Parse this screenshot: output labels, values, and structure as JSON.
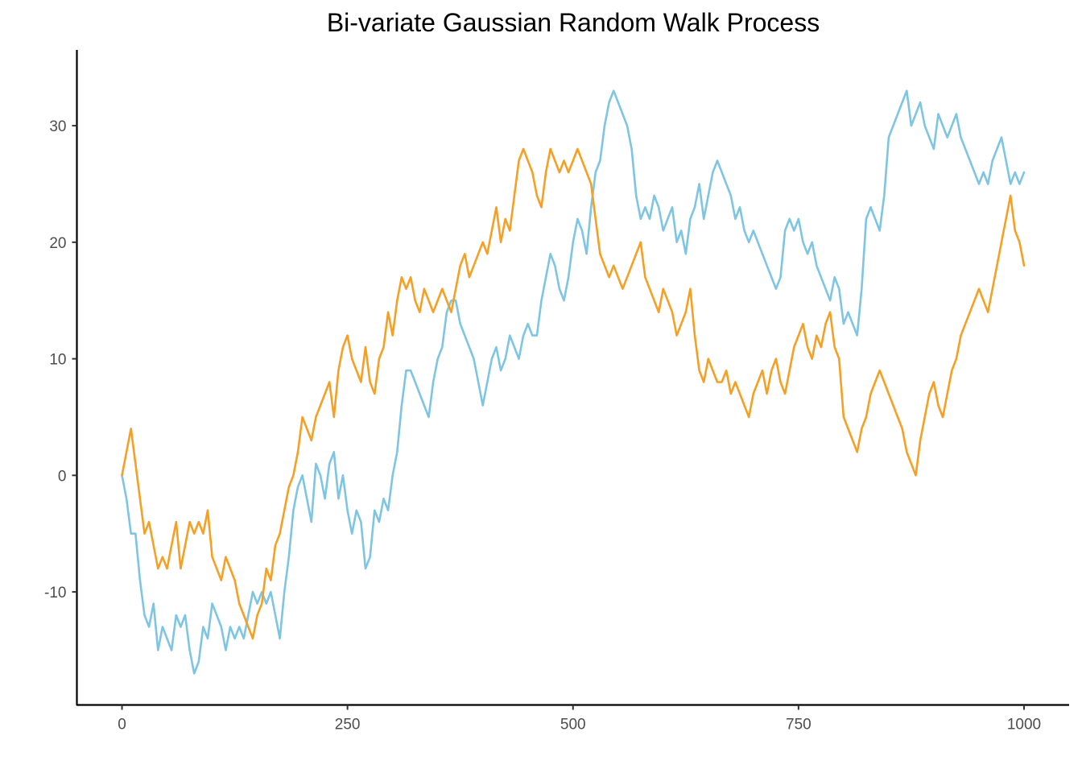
{
  "chart_data": {
    "type": "line",
    "title": "Bi-variate Gaussian Random Walk Process",
    "xlabel": "",
    "ylabel": "",
    "xlim": [
      -50,
      1050
    ],
    "ylim": [
      -19.7,
      36.5
    ],
    "grid": false,
    "x_ticks": [
      0,
      250,
      500,
      750,
      1000
    ],
    "y_ticks": [
      -10,
      0,
      10,
      20,
      30
    ],
    "x_tick_labels": [
      "0",
      "250",
      "500",
      "750",
      "1000"
    ],
    "y_tick_labels": [
      "-10",
      "0",
      "10",
      "20",
      "30"
    ],
    "series": [
      {
        "color": "#7ec5e3",
        "x": [
          0,
          5,
          10,
          15,
          20,
          25,
          30,
          35,
          40,
          45,
          50,
          55,
          60,
          65,
          70,
          75,
          80,
          85,
          90,
          95,
          100,
          105,
          110,
          115,
          120,
          125,
          130,
          135,
          140,
          145,
          150,
          155,
          160,
          165,
          170,
          175,
          180,
          185,
          190,
          195,
          200,
          205,
          210,
          215,
          220,
          225,
          230,
          235,
          240,
          245,
          250,
          255,
          260,
          265,
          270,
          275,
          280,
          285,
          290,
          295,
          300,
          305,
          310,
          315,
          320,
          325,
          330,
          335,
          340,
          345,
          350,
          355,
          360,
          365,
          370,
          375,
          380,
          385,
          390,
          395,
          400,
          405,
          410,
          415,
          420,
          425,
          430,
          435,
          440,
          445,
          450,
          455,
          460,
          465,
          470,
          475,
          480,
          485,
          490,
          495,
          500,
          505,
          510,
          515,
          520,
          525,
          530,
          535,
          540,
          545,
          550,
          555,
          560,
          565,
          570,
          575,
          580,
          585,
          590,
          595,
          600,
          605,
          610,
          615,
          620,
          625,
          630,
          635,
          640,
          645,
          650,
          655,
          660,
          665,
          670,
          675,
          680,
          685,
          690,
          695,
          700,
          705,
          710,
          715,
          720,
          725,
          730,
          735,
          740,
          745,
          750,
          755,
          760,
          765,
          770,
          775,
          780,
          785,
          790,
          795,
          800,
          805,
          810,
          815,
          820,
          825,
          830,
          835,
          840,
          845,
          850,
          855,
          860,
          865,
          870,
          875,
          880,
          885,
          890,
          895,
          900,
          905,
          910,
          915,
          920,
          925,
          930,
          935,
          940,
          945,
          950,
          955,
          960,
          965,
          970,
          975,
          980,
          985,
          990,
          995,
          1000
        ],
        "y": [
          0,
          -2,
          -5,
          -5,
          -9,
          -12,
          -13,
          -11,
          -15,
          -13,
          -14,
          -15,
          -12,
          -13,
          -12,
          -15,
          -17,
          -16,
          -13,
          -14,
          -11,
          -12,
          -13,
          -15,
          -13,
          -14,
          -13,
          -14,
          -12,
          -10,
          -11,
          -10,
          -11,
          -10,
          -12,
          -14,
          -10,
          -7,
          -3,
          -1,
          0,
          -2,
          -4,
          1,
          0,
          -2,
          1,
          2,
          -2,
          0,
          -3,
          -5,
          -3,
          -4,
          -8,
          -7,
          -3,
          -4,
          -2,
          -3,
          0,
          2,
          6,
          9,
          9,
          8,
          7,
          6,
          5,
          8,
          10,
          11,
          14,
          15,
          15,
          13,
          12,
          11,
          10,
          8,
          6,
          8,
          10,
          11,
          9,
          10,
          12,
          11,
          10,
          12,
          13,
          12,
          12,
          15,
          17,
          19,
          18,
          16,
          15,
          17,
          20,
          22,
          21,
          19,
          23,
          26,
          27,
          30,
          32,
          33,
          32,
          31,
          30,
          28,
          24,
          22,
          23,
          22,
          24,
          23,
          21,
          22,
          23,
          20,
          21,
          19,
          22,
          23,
          25,
          22,
          24,
          26,
          27,
          26,
          25,
          24,
          22,
          23,
          21,
          20,
          21,
          20,
          19,
          18,
          17,
          16,
          17,
          21,
          22,
          21,
          22,
          20,
          19,
          20,
          18,
          17,
          16,
          15,
          17,
          16,
          13,
          14,
          13,
          12,
          16,
          22,
          23,
          22,
          21,
          24,
          29,
          30,
          31,
          32,
          33,
          30,
          31,
          32,
          30,
          29,
          28,
          31,
          30,
          29,
          30,
          31,
          29,
          28,
          27,
          26,
          25,
          26,
          25,
          27,
          28,
          29,
          27,
          25,
          26,
          25,
          26
        ]
      },
      {
        "color": "#f5a024",
        "x": [
          0,
          5,
          10,
          15,
          20,
          25,
          30,
          35,
          40,
          45,
          50,
          55,
          60,
          65,
          70,
          75,
          80,
          85,
          90,
          95,
          100,
          105,
          110,
          115,
          120,
          125,
          130,
          135,
          140,
          145,
          150,
          155,
          160,
          165,
          170,
          175,
          180,
          185,
          190,
          195,
          200,
          205,
          210,
          215,
          220,
          225,
          230,
          235,
          240,
          245,
          250,
          255,
          260,
          265,
          270,
          275,
          280,
          285,
          290,
          295,
          300,
          305,
          310,
          315,
          320,
          325,
          330,
          335,
          340,
          345,
          350,
          355,
          360,
          365,
          370,
          375,
          380,
          385,
          390,
          395,
          400,
          405,
          410,
          415,
          420,
          425,
          430,
          435,
          440,
          445,
          450,
          455,
          460,
          465,
          470,
          475,
          480,
          485,
          490,
          495,
          500,
          505,
          510,
          515,
          520,
          525,
          530,
          535,
          540,
          545,
          550,
          555,
          560,
          565,
          570,
          575,
          580,
          585,
          590,
          595,
          600,
          605,
          610,
          615,
          620,
          625,
          630,
          635,
          640,
          645,
          650,
          655,
          660,
          665,
          670,
          675,
          680,
          685,
          690,
          695,
          700,
          705,
          710,
          715,
          720,
          725,
          730,
          735,
          740,
          745,
          750,
          755,
          760,
          765,
          770,
          775,
          780,
          785,
          790,
          795,
          800,
          805,
          810,
          815,
          820,
          825,
          830,
          835,
          840,
          845,
          850,
          855,
          860,
          865,
          870,
          875,
          880,
          885,
          890,
          895,
          900,
          905,
          910,
          915,
          920,
          925,
          930,
          935,
          940,
          945,
          950,
          955,
          960,
          965,
          970,
          975,
          980,
          985,
          990,
          995,
          1000
        ],
        "y": [
          0,
          2,
          4,
          1,
          -2,
          -5,
          -4,
          -6,
          -8,
          -7,
          -8,
          -6,
          -4,
          -8,
          -6,
          -4,
          -5,
          -4,
          -5,
          -3,
          -7,
          -8,
          -9,
          -7,
          -8,
          -9,
          -11,
          -12,
          -13,
          -14,
          -12,
          -11,
          -8,
          -9,
          -6,
          -5,
          -3,
          -1,
          0,
          2,
          5,
          4,
          3,
          5,
          6,
          7,
          8,
          5,
          9,
          11,
          12,
          10,
          9,
          8,
          11,
          8,
          7,
          10,
          11,
          14,
          12,
          15,
          17,
          16,
          17,
          15,
          14,
          16,
          15,
          14,
          15,
          16,
          15,
          14,
          16,
          18,
          19,
          17,
          18,
          19,
          20,
          19,
          21,
          23,
          20,
          22,
          21,
          24,
          27,
          28,
          27,
          26,
          24,
          23,
          26,
          28,
          27,
          26,
          27,
          26,
          27,
          28,
          27,
          26,
          25,
          22,
          19,
          18,
          17,
          18,
          17,
          16,
          17,
          18,
          19,
          20,
          17,
          16,
          15,
          14,
          16,
          15,
          14,
          12,
          13,
          14,
          16,
          12,
          9,
          8,
          10,
          9,
          8,
          8,
          9,
          7,
          8,
          7,
          6,
          5,
          7,
          8,
          9,
          7,
          9,
          10,
          8,
          7,
          9,
          11,
          12,
          13,
          11,
          10,
          12,
          11,
          13,
          14,
          11,
          10,
          5,
          4,
          3,
          2,
          4,
          5,
          7,
          8,
          9,
          8,
          7,
          6,
          5,
          4,
          2,
          1,
          0,
          3,
          5,
          7,
          8,
          6,
          5,
          7,
          9,
          10,
          12,
          13,
          14,
          15,
          16,
          15,
          14,
          16,
          18,
          20,
          22,
          24,
          21,
          20,
          18
        ]
      }
    ]
  }
}
